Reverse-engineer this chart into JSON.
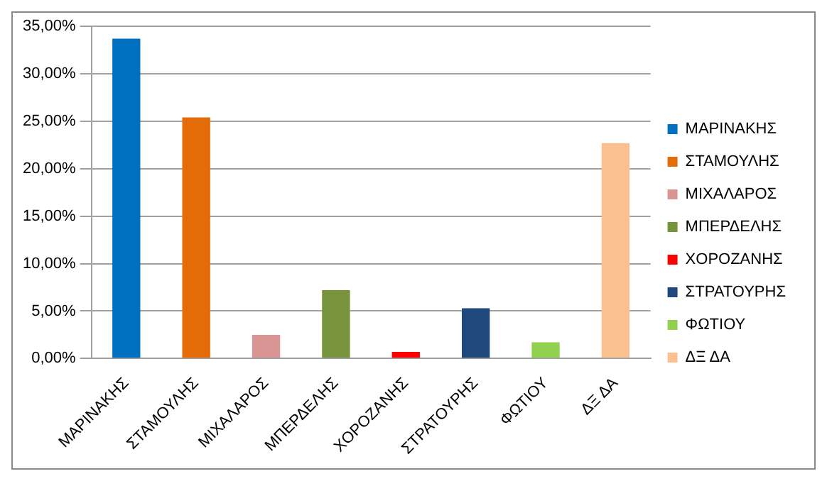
{
  "chart_data": {
    "type": "bar",
    "categories": [
      "ΜΑΡΙΝΑΚΗΣ",
      "ΣΤΑΜΟΥΛΗΣ",
      "ΜΙΧΑΛΑΡΟΣ",
      "ΜΠΕΡΔΕΛΗΣ",
      "ΧΟΡΟΖΑΝΗΣ",
      "ΣΤΡΑΤΟΥΡΗΣ",
      "ΦΩΤΙΟΥ",
      "ΔΞ ΔΑ"
    ],
    "series": [
      {
        "name": "ΜΑΡΙΝΑΚΗΣ",
        "color": "#0070c0",
        "values": [
          33.7,
          null,
          null,
          null,
          null,
          null,
          null,
          null
        ]
      },
      {
        "name": "ΣΤΑΜΟΥΛΗΣ",
        "color": "#e36c09",
        "values": [
          null,
          25.4,
          null,
          null,
          null,
          null,
          null,
          null
        ]
      },
      {
        "name": "ΜΙΧΑΛΑΡΟΣ",
        "color": "#d99594",
        "values": [
          null,
          null,
          2.5,
          null,
          null,
          null,
          null,
          null
        ]
      },
      {
        "name": "ΜΠΕΡΔΕΛΗΣ",
        "color": "#77933c",
        "values": [
          null,
          null,
          null,
          7.2,
          null,
          null,
          null,
          null
        ]
      },
      {
        "name": "ΧΟΡΟΖΑΝΗΣ",
        "color": "#ff0000",
        "values": [
          null,
          null,
          null,
          null,
          0.7,
          null,
          null,
          null
        ]
      },
      {
        "name": "ΣΤΡΑΤΟΥΡΗΣ",
        "color": "#1f497d",
        "values": [
          null,
          null,
          null,
          null,
          null,
          5.3,
          null,
          null
        ]
      },
      {
        "name": "ΦΩΤΙΟΥ",
        "color": "#92d050",
        "values": [
          null,
          null,
          null,
          null,
          null,
          null,
          1.7,
          null
        ]
      },
      {
        "name": "ΔΞ ΔΑ",
        "color": "#fac090",
        "values": [
          null,
          null,
          null,
          null,
          null,
          null,
          null,
          22.7
        ]
      }
    ],
    "ylim": [
      0,
      35
    ],
    "yticks": [
      {
        "value": 0,
        "label": "0,00%"
      },
      {
        "value": 5,
        "label": "5,00%"
      },
      {
        "value": 10,
        "label": "10,00%"
      },
      {
        "value": 15,
        "label": "15,00%"
      },
      {
        "value": 20,
        "label": "20,00%"
      },
      {
        "value": 25,
        "label": "25,00%"
      },
      {
        "value": 30,
        "label": "30,00%"
      },
      {
        "value": 35,
        "label": "35,00%"
      }
    ],
    "grid": "y",
    "legend": "right"
  }
}
